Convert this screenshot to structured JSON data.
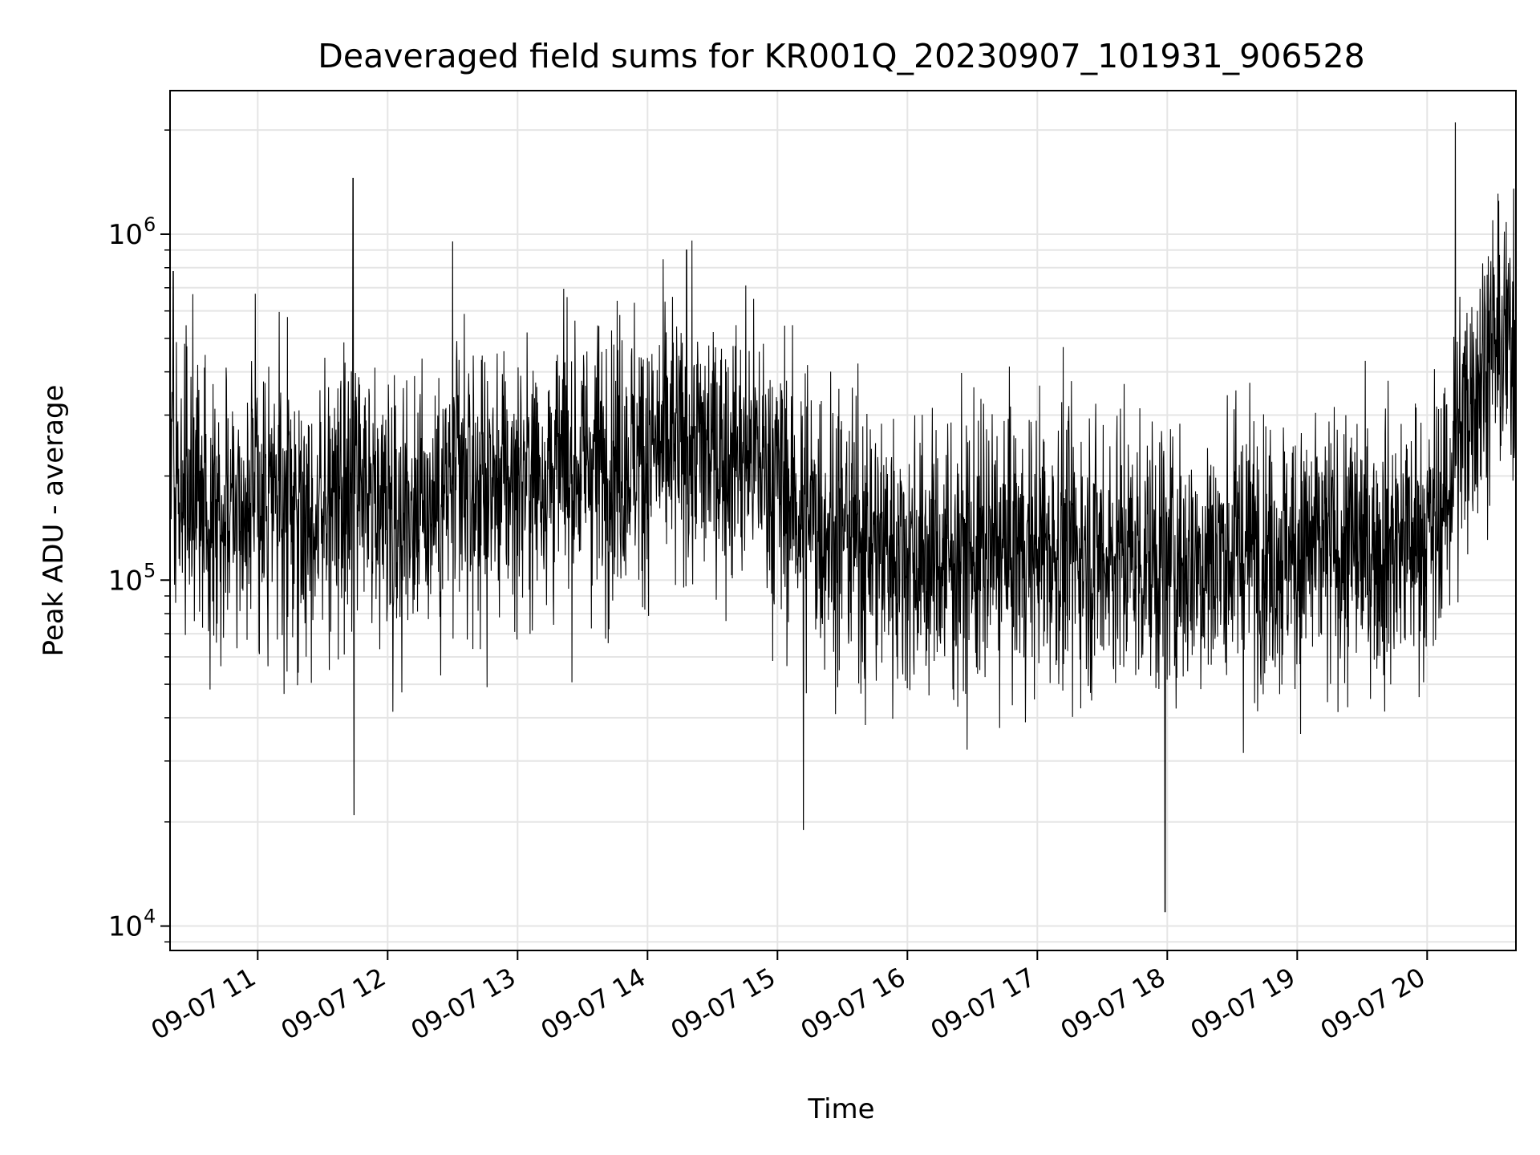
{
  "chart_data": {
    "type": "line",
    "title": "Deaveraged field sums for KR001Q_20230907_101931_906528",
    "xlabel": "Time",
    "ylabel": "Peak ADU - average",
    "y_scale": "log",
    "ylim": [
      8500,
      2600000
    ],
    "xlim": [
      "2023-09-07 10:19:31",
      "2023-09-07 20:41:00"
    ],
    "grid": true,
    "line_color": "#000000",
    "grid_color": "#e5e5e5",
    "x_ticks": [
      "09-07 11",
      "09-07 12",
      "09-07 13",
      "09-07 14",
      "09-07 15",
      "09-07 16",
      "09-07 17",
      "09-07 18",
      "09-07 19",
      "09-07 20"
    ],
    "y_ticks": [
      {
        "value": 10000,
        "base": "10",
        "exp": "4"
      },
      {
        "value": 100000,
        "base": "10",
        "exp": "5"
      },
      {
        "value": 1000000,
        "base": "10",
        "exp": "6"
      }
    ],
    "series": [
      {
        "x": [
          "2023-09-07 10:19:31",
          "2023-09-07 10:50:00",
          "2023-09-07 11:20:00",
          "2023-09-07 11:50:00",
          "2023-09-07 12:20:00",
          "2023-09-07 12:50:00",
          "2023-09-07 13:20:00",
          "2023-09-07 13:50:00",
          "2023-09-07 14:20:00",
          "2023-09-07 14:50:00",
          "2023-09-07 15:10:00",
          "2023-09-07 15:40:00",
          "2023-09-07 16:10:00",
          "2023-09-07 16:40:00",
          "2023-09-07 17:10:00",
          "2023-09-07 17:40:00",
          "2023-09-07 18:10:00",
          "2023-09-07 18:40:00",
          "2023-09-07 19:10:00",
          "2023-09-07 19:40:00",
          "2023-09-07 20:05:00",
          "2023-09-07 20:20:00",
          "2023-09-07 20:30:00",
          "2023-09-07 20:41:00"
        ],
        "y": [
          180000,
          170000,
          160000,
          165000,
          170000,
          190000,
          210000,
          230000,
          240000,
          230000,
          160000,
          130000,
          115000,
          120000,
          125000,
          120000,
          115000,
          125000,
          120000,
          125000,
          140000,
          350000,
          480000,
          460000
        ]
      }
    ],
    "spikes": [
      {
        "x": "2023-09-07 10:21:00",
        "y": 780000
      },
      {
        "x": "2023-09-07 11:44:00",
        "y": 1450000
      },
      {
        "x": "2023-09-07 11:44:30",
        "y": 21000
      },
      {
        "x": "2023-09-07 12:30:00",
        "y": 950000
      },
      {
        "x": "2023-09-07 14:18:00",
        "y": 900000
      },
      {
        "x": "2023-09-07 15:12:00",
        "y": 19000
      },
      {
        "x": "2023-09-07 17:59:00",
        "y": 11000
      },
      {
        "x": "2023-09-07 20:13:00",
        "y": 2100000
      },
      {
        "x": "2023-09-07 20:40:00",
        "y": 1350000
      }
    ]
  }
}
